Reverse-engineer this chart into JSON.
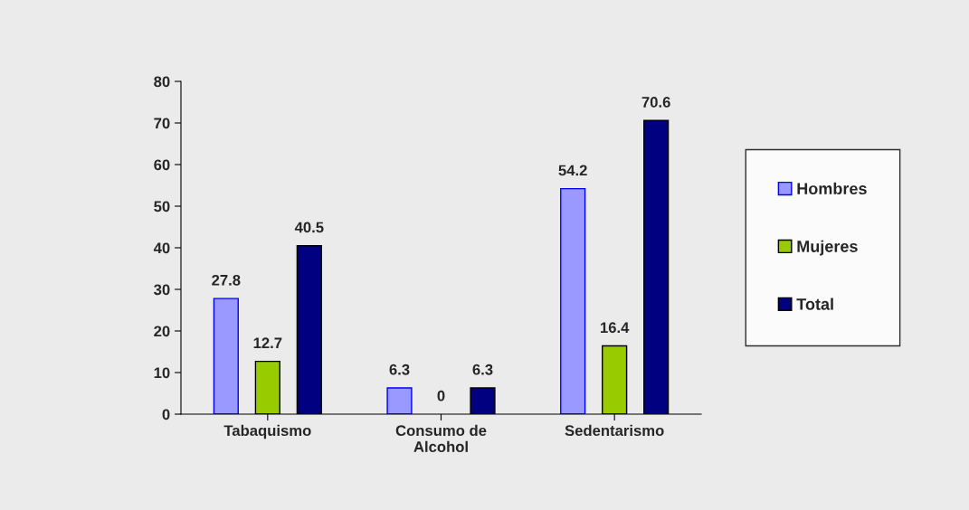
{
  "chart_data": {
    "type": "bar",
    "categories": [
      "Tabaquismo",
      "Consumo de\nAlcohol",
      "Sedentarismo"
    ],
    "series": [
      {
        "name": "Hombres",
        "color": "#9999ff",
        "values": [
          27.8,
          6.3,
          54.2
        ]
      },
      {
        "name": "Mujeres",
        "color": "#99cc00",
        "values": [
          12.7,
          0,
          16.4
        ]
      },
      {
        "name": "Total",
        "color": "#000080",
        "values": [
          40.5,
          6.3,
          70.6
        ]
      }
    ],
    "ylim": [
      0,
      80
    ],
    "yticks": [
      0,
      10,
      20,
      30,
      40,
      50,
      60,
      70,
      80
    ],
    "grid": false,
    "legend": "right",
    "data_labels": true
  }
}
